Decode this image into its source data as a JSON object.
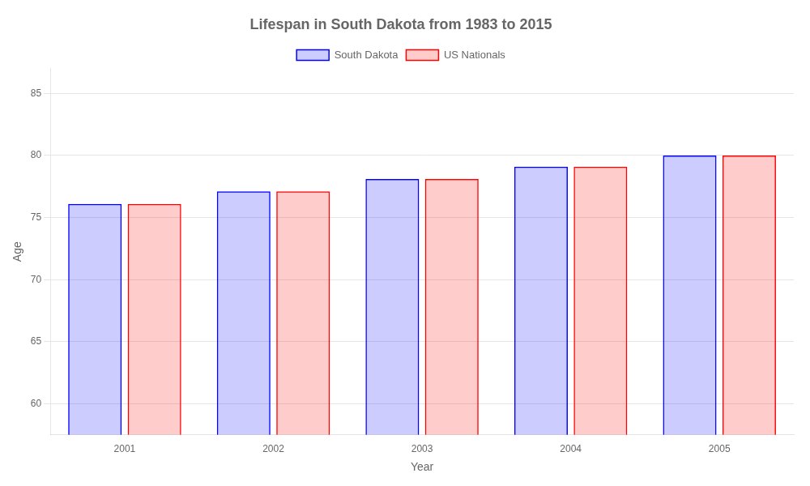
{
  "chart_data": {
    "type": "bar",
    "title": "Lifespan in South Dakota from 1983 to 2015",
    "x_label": "Year",
    "y_label": "Age",
    "categories": [
      "2001",
      "2002",
      "2003",
      "2004",
      "2005"
    ],
    "series": [
      {
        "name": "South Dakota",
        "color": "#0000ff",
        "values": [
          76.1,
          77.1,
          78.1,
          79.1,
          80.0
        ]
      },
      {
        "name": "US Nationals",
        "color": "#ff0000",
        "values": [
          76.1,
          77.1,
          78.1,
          79.1,
          80.0
        ]
      }
    ],
    "ylim": [
      57.5,
      87
    ],
    "yticks": [
      60,
      65,
      70,
      75,
      80,
      85
    ],
    "grid": true,
    "legend": "top"
  }
}
